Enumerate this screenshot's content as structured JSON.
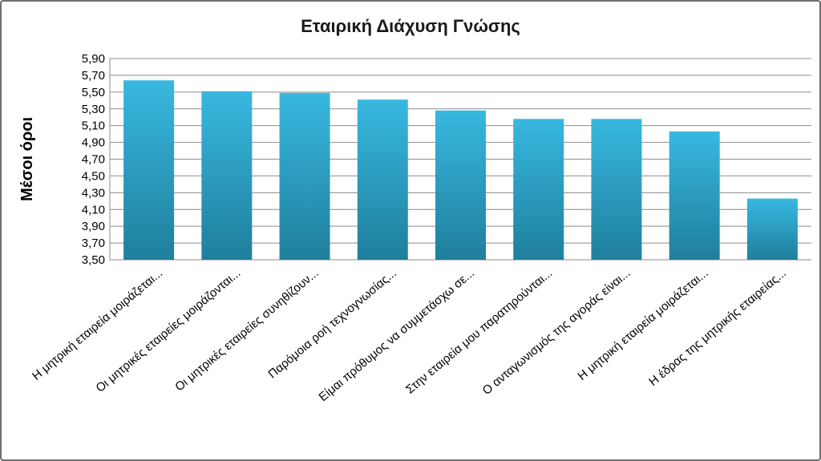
{
  "chart_data": {
    "type": "bar",
    "title": "Εταιρική Διάχυση Γνώσης",
    "xlabel": "",
    "ylabel": "Μέσοι όροι",
    "ylim": [
      3.5,
      5.9
    ],
    "yticks": [
      "3,50",
      "3,70",
      "3,90",
      "4,10",
      "4,30",
      "4,50",
      "4,70",
      "4,90",
      "5,10",
      "5,30",
      "5,50",
      "5,70",
      "5,90"
    ],
    "grid": true,
    "categories": [
      "Η μητρική εταιρεία μοιράζεται...",
      "Οι μητρικές εταιρείες μοιράζονται...",
      "Οι μητρικές εταιρείες συνηθίζουν...",
      "Παρόμοια ροή τεχνογνωσίας...",
      "Είμαι πρόθυμος να συμμετάσχω σε...",
      "Στην εταιρεία μου παρατηρούνται...",
      "Ο ανταγωνισμός της αγοράς είναι...",
      "Η μητρική εταιρεία μοιράζεται...",
      "Η έδρας της μητρικής εταιρείας..."
    ],
    "values": [
      5.64,
      5.51,
      5.49,
      5.41,
      5.28,
      5.18,
      5.18,
      5.03,
      4.23
    ],
    "bar_color": "#2fa8cf"
  }
}
